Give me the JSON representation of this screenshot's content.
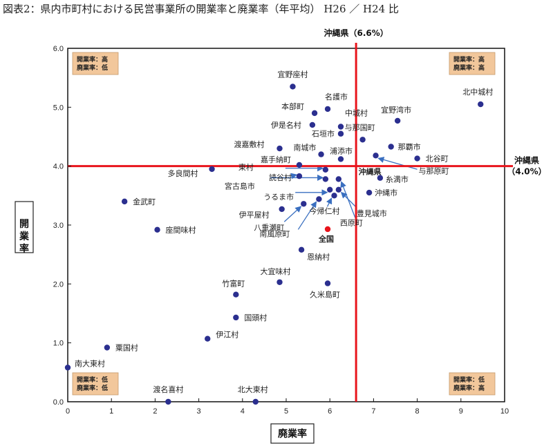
{
  "title": "図表2：県内市町村における民営事業所の開業率と廃業率（年平均） H26 ／ H24 比",
  "chart_data": {
    "type": "scatter",
    "xlabel": "廃業率",
    "ylabel": "開業率",
    "xlim": [
      0,
      10
    ],
    "ylim": [
      0,
      6
    ],
    "xticks": [
      "0",
      "1",
      "2",
      "3",
      "4",
      "5",
      "6",
      "7",
      "8",
      "9",
      "10"
    ],
    "yticks": [
      "0.0",
      "1.0",
      "2.0",
      "3.0",
      "4.0",
      "5.0",
      "6.0"
    ],
    "grid": false,
    "ref_lines": {
      "vertical": {
        "value": 6.6,
        "label": "沖縄県（6.6%）"
      },
      "horizontal": {
        "value": 4.0,
        "label_line1": "沖縄県",
        "label_line2": "（4.0%）"
      }
    },
    "quadrant_labels": [
      {
        "pos": "top-left",
        "lines": [
          "開業率：高",
          "廃業率：低"
        ]
      },
      {
        "pos": "top-right",
        "lines": [
          "開業率：高",
          "廃業率：高"
        ]
      },
      {
        "pos": "bottom-left",
        "lines": [
          "開業率：低",
          "廃業率：低"
        ]
      },
      {
        "pos": "bottom-right",
        "lines": [
          "開業率：低",
          "廃業率：高"
        ]
      }
    ],
    "points": [
      {
        "name": "宜野座村",
        "x": 5.15,
        "y": 5.35
      },
      {
        "name": "名護市",
        "x": 5.95,
        "y": 4.97
      },
      {
        "name": "本部町",
        "x": 5.65,
        "y": 4.9
      },
      {
        "name": "中城村",
        "x": 6.25,
        "y": 4.67
      },
      {
        "name": "宜野湾市",
        "x": 7.55,
        "y": 4.77
      },
      {
        "name": "北中城村",
        "x": 9.45,
        "y": 5.05
      },
      {
        "name": "伊是名村",
        "x": 5.6,
        "y": 4.7
      },
      {
        "name": "石垣市",
        "x": 6.25,
        "y": 4.55
      },
      {
        "name": "与那国町",
        "x": 6.75,
        "y": 4.45
      },
      {
        "name": "那覇市",
        "x": 7.4,
        "y": 4.33
      },
      {
        "name": "渡嘉敷村",
        "x": 4.85,
        "y": 4.3
      },
      {
        "name": "南城市",
        "x": 5.8,
        "y": 4.2
      },
      {
        "name": "浦添市",
        "x": 6.25,
        "y": 4.12
      },
      {
        "name": "北谷町",
        "x": 8.0,
        "y": 4.13
      },
      {
        "name": "与那原町",
        "x": 7.05,
        "y": 4.18
      },
      {
        "name": "嘉手納町",
        "x": 5.3,
        "y": 4.02
      },
      {
        "name": "多良間村",
        "x": 3.3,
        "y": 3.95
      },
      {
        "name": "東村",
        "x": 5.9,
        "y": 3.94
      },
      {
        "name": "読谷村",
        "x": 5.3,
        "y": 3.83
      },
      {
        "name": "宮古島市",
        "x": 5.9,
        "y": 3.78
      },
      {
        "name": "糸満市",
        "x": 7.15,
        "y": 3.8
      },
      {
        "name": "うるま市",
        "x": 6.0,
        "y": 3.6
      },
      {
        "name": "沖縄市",
        "x": 6.9,
        "y": 3.55
      },
      {
        "name": "金武町",
        "x": 1.3,
        "y": 3.4
      },
      {
        "name": "伊平屋村",
        "x": 4.9,
        "y": 3.27
      },
      {
        "name": "八重瀬町",
        "x": 5.4,
        "y": 3.36
      },
      {
        "name": "南風原町",
        "x": 5.75,
        "y": 3.44
      },
      {
        "name": "今帰仁村",
        "x": 6.1,
        "y": 3.5
      },
      {
        "name": "豊見城市",
        "x": 6.2,
        "y": 3.6
      },
      {
        "name": "西原町",
        "x": 6.2,
        "y": 3.78
      },
      {
        "name": "座間味村",
        "x": 2.05,
        "y": 2.92
      },
      {
        "name": "恩納村",
        "x": 5.35,
        "y": 2.58
      },
      {
        "name": "大宜味村",
        "x": 4.85,
        "y": 2.03
      },
      {
        "name": "久米島町",
        "x": 5.95,
        "y": 2.01
      },
      {
        "name": "竹富町",
        "x": 3.85,
        "y": 1.82
      },
      {
        "name": "国頭村",
        "x": 3.85,
        "y": 1.43
      },
      {
        "name": "伊江村",
        "x": 3.2,
        "y": 1.07
      },
      {
        "name": "粟国村",
        "x": 0.9,
        "y": 0.92
      },
      {
        "name": "南大東村",
        "x": 0.0,
        "y": 0.58
      },
      {
        "name": "渡名喜村",
        "x": 2.3,
        "y": 0.0
      },
      {
        "name": "北大東村",
        "x": 4.3,
        "y": 0.0
      }
    ],
    "national": {
      "name": "全国",
      "x": 5.95,
      "y": 2.93
    },
    "okinawa_point_label": "沖縄県",
    "colors": {
      "point": "#2b2f8f",
      "ref_line": "#e8141c",
      "national": "#e8141c",
      "box": "#f2c79b",
      "arrow": "#3a6fc0"
    }
  }
}
